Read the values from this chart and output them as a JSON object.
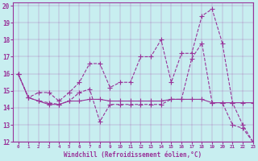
{
  "xlabel": "Windchill (Refroidissement éolien,°C)",
  "bg_color": "#c8eef0",
  "line_color": "#993399",
  "xlim": [
    -0.5,
    23
  ],
  "ylim": [
    12,
    20.2
  ],
  "yticks": [
    12,
    13,
    14,
    15,
    16,
    17,
    18,
    19,
    20
  ],
  "xticks": [
    0,
    1,
    2,
    3,
    4,
    5,
    6,
    7,
    8,
    9,
    10,
    11,
    12,
    13,
    14,
    15,
    16,
    17,
    18,
    19,
    20,
    21,
    22,
    23
  ],
  "lines": [
    {
      "x": [
        0,
        1,
        2,
        3,
        4,
        5,
        6,
        7,
        8,
        9,
        10,
        11,
        12,
        13,
        14,
        15,
        16,
        17,
        18,
        19,
        20,
        21,
        22,
        23
      ],
      "y": [
        16,
        14.6,
        14.9,
        14.9,
        14.4,
        14.9,
        15.5,
        16.6,
        16.6,
        15.2,
        15.5,
        15.5,
        17.0,
        17.0,
        18.0,
        15.5,
        17.2,
        17.2,
        19.4,
        19.8,
        17.8,
        14.3,
        13.0,
        12.0
      ],
      "style": "dashed"
    },
    {
      "x": [
        0,
        1,
        2,
        3,
        4,
        5,
        6,
        7,
        8,
        9,
        10,
        11,
        12,
        13,
        14,
        15,
        16,
        17,
        18,
        19,
        20,
        21,
        22,
        23
      ],
      "y": [
        16,
        14.6,
        14.4,
        14.3,
        14.2,
        14.4,
        14.9,
        15.1,
        13.2,
        14.2,
        14.2,
        14.2,
        14.2,
        14.2,
        14.2,
        14.5,
        14.5,
        16.9,
        17.8,
        14.3,
        14.3,
        13.0,
        12.8,
        12.0
      ],
      "style": "dashed"
    },
    {
      "x": [
        0,
        1,
        2,
        3,
        4,
        5,
        6,
        7,
        8,
        9,
        10,
        11,
        12,
        13,
        14,
        15,
        16,
        17,
        18,
        19,
        20,
        21,
        22,
        23
      ],
      "y": [
        16,
        14.6,
        14.4,
        14.2,
        14.2,
        14.4,
        14.4,
        14.5,
        14.5,
        14.4,
        14.4,
        14.4,
        14.4,
        14.4,
        14.4,
        14.5,
        14.5,
        14.5,
        14.5,
        14.3,
        14.3,
        14.3,
        14.3,
        14.3
      ],
      "style": "solid"
    }
  ]
}
